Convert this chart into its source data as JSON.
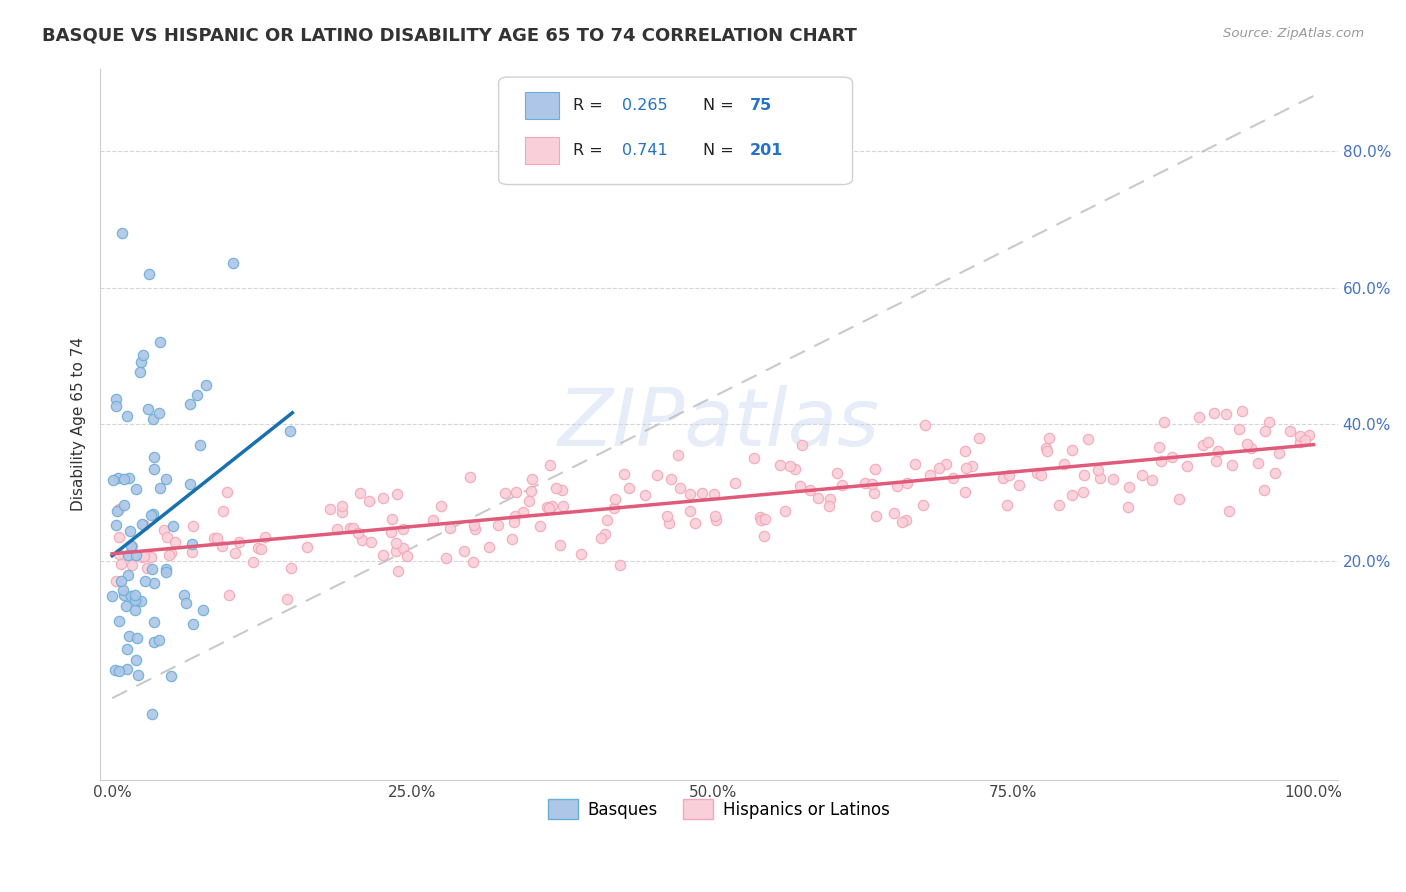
{
  "title": "BASQUE VS HISPANIC OR LATINO DISABILITY AGE 65 TO 74 CORRELATION CHART",
  "source_text": "Source: ZipAtlas.com",
  "ylabel": "Disability Age 65 to 74",
  "xlim": [
    -0.01,
    1.02
  ],
  "ylim": [
    -0.12,
    0.92
  ],
  "xticks": [
    0.0,
    0.25,
    0.5,
    0.75,
    1.0
  ],
  "xtick_labels": [
    "0.0%",
    "25.0%",
    "50.0%",
    "75.0%",
    "100.0%"
  ],
  "ytick_positions": [
    0.2,
    0.4,
    0.6,
    0.8
  ],
  "ytick_labels": [
    "20.0%",
    "40.0%",
    "60.0%",
    "80.0%"
  ],
  "basque_color": "#6baed6",
  "basque_color_fill": "#aec6e8",
  "hispanic_color": "#f4a7b9",
  "hispanic_color_fill": "#f9d0da",
  "basque_line_color": "#1a6faf",
  "hispanic_line_color": "#e05a7a",
  "dashed_line_color": "#b8b8b8",
  "R_basque": 0.265,
  "N_basque": 75,
  "R_hispanic": 0.741,
  "N_hispanic": 201,
  "watermark": "ZIPatlas",
  "ytick_color": "#4472c4",
  "title_color": "#333333",
  "source_color": "#999999",
  "ylabel_color": "#333333"
}
